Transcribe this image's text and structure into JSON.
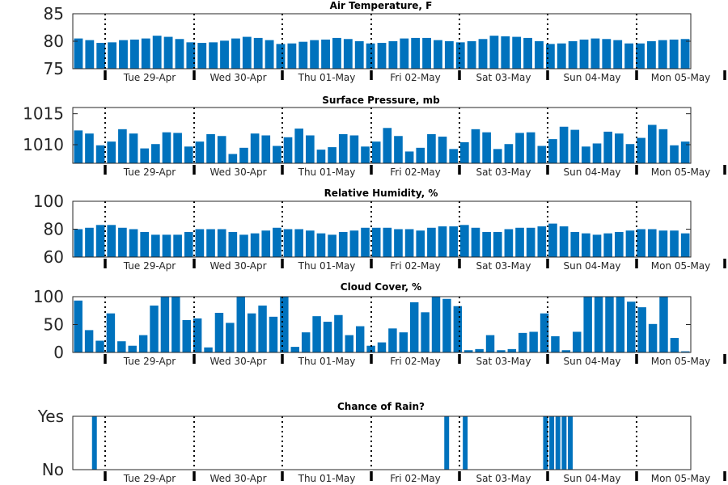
{
  "chart_data": [
    {
      "type": "bar",
      "title": "Air Temperature, F",
      "ylim": [
        75,
        85
      ],
      "yticks": [
        {
          "value": 75,
          "label": "75"
        },
        {
          "value": 80,
          "label": "80"
        },
        {
          "value": 85,
          "label": "85"
        }
      ],
      "values": [
        80.5,
        80.2,
        79.7,
        79.8,
        80.2,
        80.3,
        80.5,
        81.0,
        80.8,
        80.4,
        79.8,
        79.7,
        79.8,
        80.1,
        80.5,
        80.8,
        80.6,
        80.2,
        79.5,
        79.6,
        79.9,
        80.2,
        80.3,
        80.6,
        80.4,
        80.0,
        79.6,
        79.7,
        80.0,
        80.5,
        80.6,
        80.6,
        80.2,
        80.0,
        79.8,
        80.0,
        80.4,
        81.0,
        80.9,
        80.8,
        80.6,
        80.0,
        79.5,
        79.6,
        80.0,
        80.3,
        80.5,
        80.4,
        80.2,
        79.6,
        79.6,
        80.0,
        80.2,
        80.3,
        80.4
      ]
    },
    {
      "type": "bar",
      "title": "Surface Pressure, mb",
      "ylim": [
        1007,
        1016
      ],
      "yticks": [
        {
          "value": 1010,
          "label": "1010"
        },
        {
          "value": 1015,
          "label": "1015"
        }
      ],
      "values": [
        1012.3,
        1011.8,
        1009.9,
        1010.5,
        1012.5,
        1011.8,
        1009.4,
        1010.1,
        1012.0,
        1011.9,
        1009.7,
        1010.5,
        1011.7,
        1011.4,
        1008.5,
        1009.5,
        1011.8,
        1011.5,
        1009.8,
        1011.2,
        1012.6,
        1011.5,
        1009.2,
        1009.6,
        1011.7,
        1011.5,
        1009.7,
        1010.5,
        1012.7,
        1011.4,
        1008.9,
        1009.5,
        1011.7,
        1011.3,
        1009.3,
        1010.4,
        1012.5,
        1012.0,
        1009.3,
        1010.1,
        1011.9,
        1012.0,
        1009.8,
        1010.9,
        1012.9,
        1012.4,
        1009.7,
        1010.2,
        1012.1,
        1011.8,
        1010.1,
        1011.1,
        1013.2,
        1012.5,
        1009.9,
        1010.5
      ]
    },
    {
      "type": "bar",
      "title": "Relative Humidity, %",
      "ylim": [
        60,
        100
      ],
      "yticks": [
        {
          "value": 60,
          "label": "60"
        },
        {
          "value": 80,
          "label": "80"
        },
        {
          "value": 100,
          "label": "100"
        }
      ],
      "values": [
        80,
        81,
        83,
        83,
        81,
        80,
        78,
        76,
        76,
        76,
        78,
        80,
        80,
        80,
        78,
        76,
        77,
        79,
        81,
        80,
        80,
        79,
        77,
        76,
        78,
        79,
        81,
        81,
        81,
        80,
        80,
        79,
        81,
        82,
        82,
        83,
        81,
        78,
        78,
        80,
        81,
        81,
        82,
        84,
        82,
        78,
        77,
        76,
        77,
        78,
        79,
        80,
        80,
        79,
        79,
        77
      ]
    },
    {
      "type": "bar",
      "title": "Cloud Cover, %",
      "ylim": [
        0,
        100
      ],
      "yticks": [
        {
          "value": 0,
          "label": "0"
        },
        {
          "value": 50,
          "label": "50"
        },
        {
          "value": 100,
          "label": "100"
        }
      ],
      "values": [
        93,
        40,
        21,
        70,
        20,
        12,
        31,
        84,
        100,
        100,
        58,
        61,
        9,
        71,
        53,
        100,
        70,
        84,
        64,
        100,
        10,
        36,
        65,
        55,
        67,
        31,
        47,
        12,
        18,
        43,
        36,
        90,
        72,
        100,
        96,
        83,
        4,
        6,
        31,
        4,
        6,
        35,
        37,
        70,
        29,
        4,
        37,
        100,
        100,
        100,
        100,
        91,
        81,
        51,
        100,
        26,
        2
      ]
    },
    {
      "type": "bar",
      "title": "Chance of Rain?",
      "ylim": [
        0,
        1
      ],
      "yticks": [
        {
          "value": 0,
          "label": "No"
        },
        {
          "value": 1,
          "label": "Yes"
        }
      ],
      "values": [
        0,
        0,
        0,
        1,
        0,
        0,
        0,
        0,
        0,
        0,
        0,
        0,
        0,
        0,
        0,
        0,
        0,
        0,
        0,
        0,
        0,
        0,
        0,
        0,
        0,
        0,
        0,
        0,
        0,
        0,
        0,
        0,
        0,
        0,
        0,
        0,
        0,
        0,
        0,
        0,
        0,
        0,
        0,
        0,
        0,
        0,
        0,
        0,
        0,
        0,
        0,
        0,
        0,
        0,
        0,
        0,
        0,
        0,
        0,
        0,
        1,
        0,
        0,
        1,
        0,
        0,
        0,
        0,
        0,
        0,
        0,
        0,
        0,
        0,
        0,
        0,
        1,
        1,
        1,
        1,
        1,
        0,
        0,
        0,
        0,
        0,
        0,
        0,
        0,
        0,
        0,
        0,
        0,
        0,
        0,
        0,
        0,
        0,
        0,
        0
      ]
    }
  ],
  "x_tick_labels": [
    "Tue 29-Apr",
    "Wed 30-Apr",
    "Thu 01-May",
    "Fri 02-May",
    "Sat 03-May",
    "Sun 04-May",
    "Mon 05-May"
  ],
  "colors": {
    "bar": "#0072bd",
    "axis": "#262626",
    "midnight_line": "#000000"
  }
}
